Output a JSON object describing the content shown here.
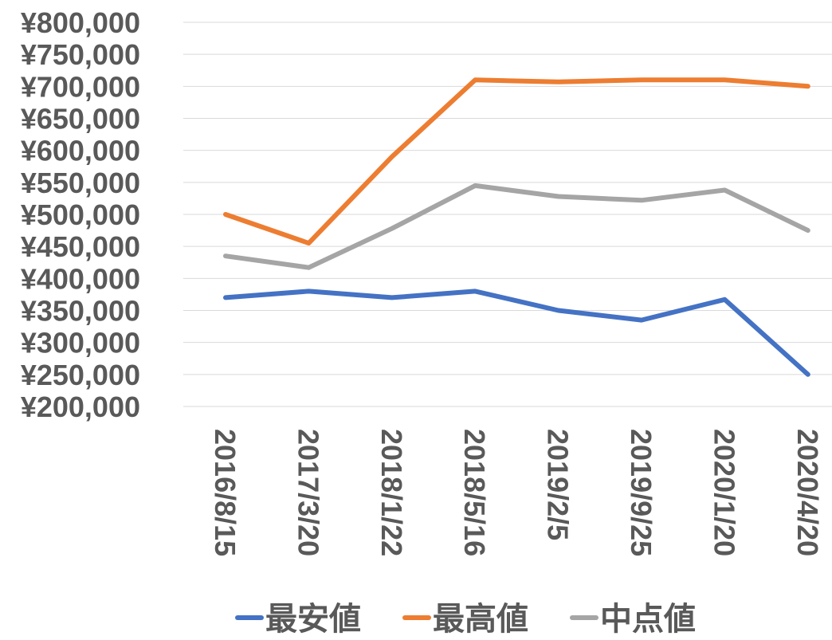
{
  "chart_data": {
    "type": "line",
    "title": "",
    "xlabel": "",
    "ylabel": "",
    "categories": [
      "2016/8/15",
      "2017/3/20",
      "2018/1/22",
      "2018/5/16",
      "2019/2/5",
      "2019/9/25",
      "2020/1/20",
      "2020/4/20"
    ],
    "y_ticks": [
      "¥200,000",
      "¥250,000",
      "¥300,000",
      "¥350,000",
      "¥400,000",
      "¥450,000",
      "¥500,000",
      "¥550,000",
      "¥600,000",
      "¥650,000",
      "¥700,000",
      "¥750,000",
      "¥800,000"
    ],
    "ylim": [
      200000,
      800000
    ],
    "grid": true,
    "legend_position": "bottom",
    "series": [
      {
        "name": "最安値",
        "color": "#4472C4",
        "values": [
          370000,
          380000,
          370000,
          380000,
          350000,
          335000,
          367000,
          250000
        ]
      },
      {
        "name": "最高値",
        "color": "#ED7D31",
        "values": [
          500000,
          455000,
          590000,
          710000,
          707000,
          710000,
          710000,
          700000
        ]
      },
      {
        "name": "中点値",
        "color": "#A5A5A5",
        "values": [
          435000,
          417000,
          478000,
          545000,
          528000,
          522000,
          538000,
          475000
        ]
      }
    ]
  }
}
